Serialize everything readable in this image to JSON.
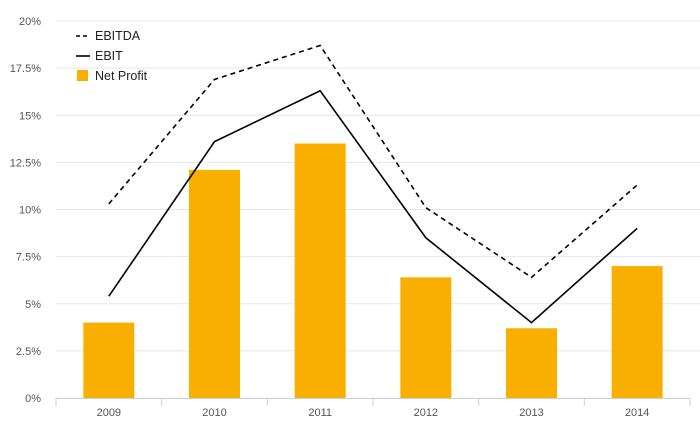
{
  "chart_data": {
    "type": "bar",
    "categories": [
      "2009",
      "2010",
      "2011",
      "2012",
      "2013",
      "2014"
    ],
    "ylim": [
      0,
      20
    ],
    "yticks": [
      "0%",
      "2.5%",
      "5%",
      "7.5%",
      "10%",
      "12.5%",
      "15%",
      "17.5%",
      "20%"
    ],
    "grid": true,
    "legend_position": "top-left",
    "series": [
      {
        "name": "EBITDA",
        "kind": "line",
        "style": "dashed",
        "color": "#000000",
        "values": [
          10.3,
          16.9,
          18.7,
          10.1,
          6.4,
          11.3
        ]
      },
      {
        "name": "EBIT",
        "kind": "line",
        "style": "solid",
        "color": "#000000",
        "values": [
          5.4,
          13.6,
          16.3,
          8.5,
          4.0,
          9.0
        ]
      },
      {
        "name": "Net Profit",
        "kind": "bar",
        "color": "#F9AF00",
        "values": [
          4.0,
          12.1,
          13.5,
          6.4,
          3.7,
          7.0
        ]
      }
    ]
  }
}
